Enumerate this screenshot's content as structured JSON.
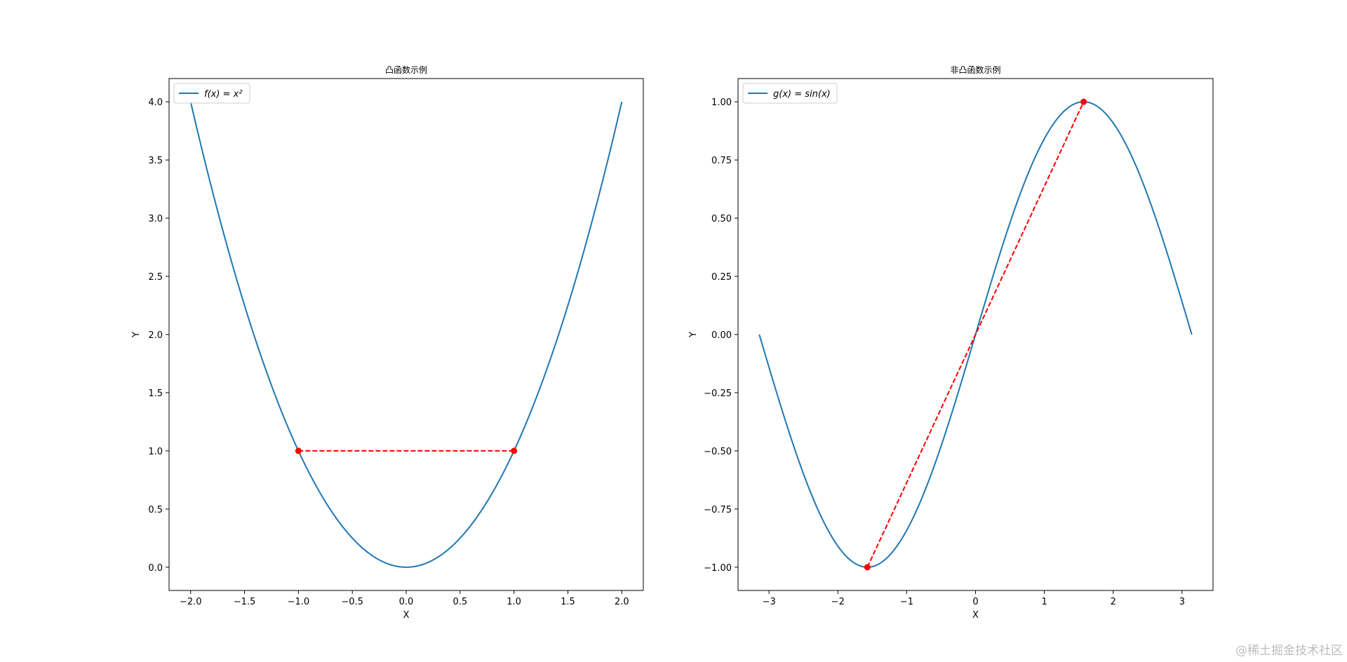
{
  "chart_data": [
    {
      "type": "line",
      "title": "凸函数示例",
      "xlabel": "X",
      "ylabel": "Y",
      "xlim": [
        -2.2,
        2.2
      ],
      "ylim": [
        -0.2,
        4.2
      ],
      "xticks": [
        -2.0,
        -1.5,
        -1.0,
        -0.5,
        0.0,
        0.5,
        1.0,
        1.5,
        2.0
      ],
      "xtick_labels": [
        "−2.0",
        "−1.5",
        "−1.0",
        "−0.5",
        "0.0",
        "0.5",
        "1.0",
        "1.5",
        "2.0"
      ],
      "yticks": [
        0.0,
        0.5,
        1.0,
        1.5,
        2.0,
        2.5,
        3.0,
        3.5,
        4.0
      ],
      "ytick_labels": [
        "0.0",
        "0.5",
        "1.0",
        "1.5",
        "2.0",
        "2.5",
        "3.0",
        "3.5",
        "4.0"
      ],
      "grid": false,
      "legend": "upper-left",
      "series": [
        {
          "name": "f(x) = x²",
          "color": "#1f77b4",
          "x": [
            -2.0,
            -1.8,
            -1.6,
            -1.4,
            -1.2,
            -1.0,
            -0.8,
            -0.6,
            -0.4,
            -0.2,
            0.0,
            0.2,
            0.4,
            0.6,
            0.8,
            1.0,
            1.2,
            1.4,
            1.6,
            1.8,
            2.0
          ],
          "y": [
            4.0,
            3.24,
            2.56,
            1.96,
            1.44,
            1.0,
            0.64,
            0.36,
            0.16,
            0.04,
            0.0,
            0.04,
            0.16,
            0.36,
            0.64,
            1.0,
            1.44,
            1.96,
            2.56,
            3.24,
            4.0
          ]
        }
      ],
      "segment": {
        "color": "#ff0000",
        "style": "dashed",
        "x": [
          -1.0,
          1.0
        ],
        "y": [
          1.0,
          1.0
        ]
      }
    },
    {
      "type": "line",
      "title": "非凸函数示例",
      "xlabel": "X",
      "ylabel": "Y",
      "xlim": [
        -3.45,
        3.45
      ],
      "ylim": [
        -1.1,
        1.1
      ],
      "xticks": [
        -3,
        -2,
        -1,
        0,
        1,
        2,
        3
      ],
      "xtick_labels": [
        "−3",
        "−2",
        "−1",
        "0",
        "1",
        "2",
        "3"
      ],
      "yticks": [
        -1.0,
        -0.75,
        -0.5,
        -0.25,
        0.0,
        0.25,
        0.5,
        0.75,
        1.0
      ],
      "ytick_labels": [
        "−1.00",
        "−0.75",
        "−0.50",
        "−0.25",
        "0.00",
        "0.25",
        "0.50",
        "0.75",
        "1.00"
      ],
      "grid": false,
      "legend": "upper-left",
      "series": [
        {
          "name": "g(x) = sin(x)",
          "color": "#1f77b4",
          "x": [
            -3.1416,
            -2.8274,
            -2.5133,
            -2.1991,
            -1.885,
            -1.5708,
            -1.2566,
            -0.9425,
            -0.6283,
            -0.3142,
            0.0,
            0.3142,
            0.6283,
            0.9425,
            1.2566,
            1.5708,
            1.885,
            2.1991,
            2.5133,
            2.8274,
            3.1416
          ],
          "y": [
            0.0,
            -0.309,
            -0.5878,
            -0.809,
            -0.9511,
            -1.0,
            -0.9511,
            -0.809,
            -0.5878,
            -0.309,
            0.0,
            0.309,
            0.5878,
            0.809,
            0.9511,
            1.0,
            0.9511,
            0.809,
            0.5878,
            0.309,
            0.0
          ]
        }
      ],
      "segment": {
        "color": "#ff0000",
        "style": "dashed",
        "x": [
          -1.5708,
          1.5708
        ],
        "y": [
          -1.0,
          1.0
        ]
      }
    }
  ],
  "watermark": "@稀土掘金技术社区"
}
